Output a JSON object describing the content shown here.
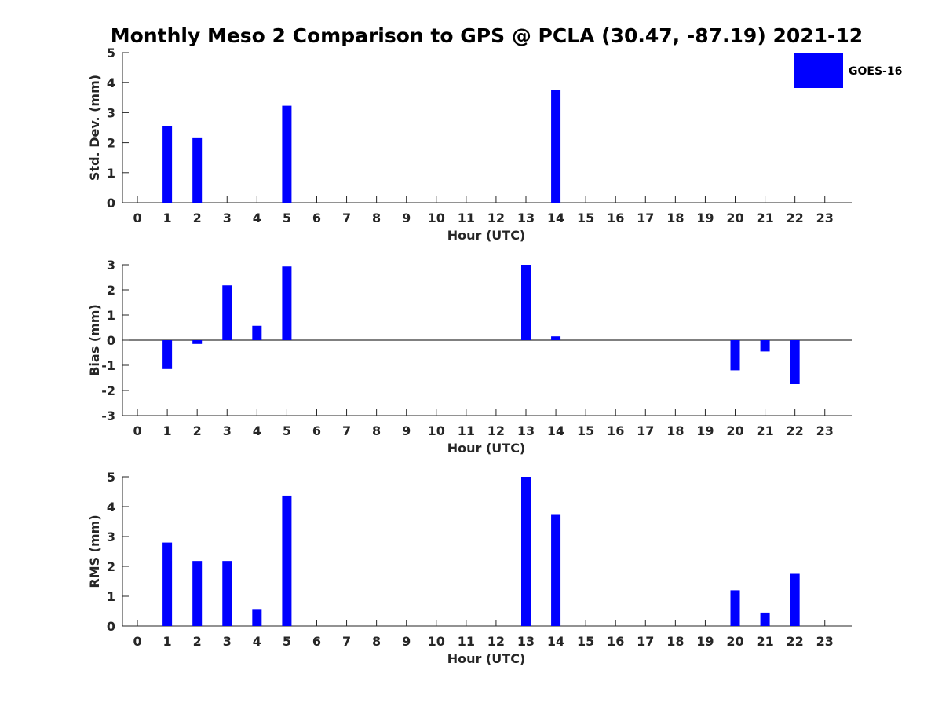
{
  "chart_title": "Monthly Meso 2 Comparison to GPS @ PCLA (30.47, -87.19) 2021-12",
  "colors": {
    "bar": "#0000ff",
    "axis": "#262626",
    "background": "#ffffff"
  },
  "legend": {
    "entries": [
      "GOES-16"
    ],
    "placement": "top-right"
  },
  "chart_data": [
    {
      "type": "bar",
      "ylabel": "Std. Dev. (mm)",
      "xlabel": "Hour (UTC)",
      "ylim": [
        0,
        5
      ],
      "yticks": [
        0,
        1,
        2,
        3,
        4,
        5
      ],
      "xlim": [
        -0.5,
        23.9
      ],
      "categories": [
        0,
        1,
        2,
        3,
        4,
        5,
        6,
        7,
        8,
        9,
        10,
        11,
        12,
        13,
        14,
        15,
        16,
        17,
        18,
        19,
        20,
        21,
        22,
        23
      ],
      "series": [
        {
          "name": "GOES-16",
          "values": [
            0,
            2.55,
            2.15,
            0,
            0,
            3.23,
            0,
            0,
            0,
            0,
            0,
            0,
            0,
            0,
            3.75,
            0,
            0,
            0,
            0,
            0,
            0,
            0,
            0,
            0
          ]
        }
      ],
      "grid": false
    },
    {
      "type": "bar",
      "ylabel": "Bias (mm)",
      "xlabel": "Hour (UTC)",
      "ylim": [
        -3,
        3
      ],
      "yticks": [
        -3,
        -2,
        -1,
        0,
        1,
        2,
        3
      ],
      "xlim": [
        -0.5,
        23.9
      ],
      "categories": [
        0,
        1,
        2,
        3,
        4,
        5,
        6,
        7,
        8,
        9,
        10,
        11,
        12,
        13,
        14,
        15,
        16,
        17,
        18,
        19,
        20,
        21,
        22,
        23
      ],
      "series": [
        {
          "name": "GOES-16",
          "values": [
            0,
            -1.15,
            -0.15,
            2.18,
            0.57,
            2.93,
            0,
            0,
            0,
            0,
            0,
            0,
            0,
            3.0,
            0.15,
            0,
            0,
            0,
            0,
            0,
            -1.2,
            -0.45,
            -1.75,
            0
          ]
        }
      ],
      "zero_line": true,
      "grid": false
    },
    {
      "type": "bar",
      "ylabel": "RMS (mm)",
      "xlabel": "Hour (UTC)",
      "ylim": [
        0,
        5
      ],
      "yticks": [
        0,
        1,
        2,
        3,
        4,
        5
      ],
      "xlim": [
        -0.5,
        23.9
      ],
      "categories": [
        0,
        1,
        2,
        3,
        4,
        5,
        6,
        7,
        8,
        9,
        10,
        11,
        12,
        13,
        14,
        15,
        16,
        17,
        18,
        19,
        20,
        21,
        22,
        23
      ],
      "series": [
        {
          "name": "GOES-16",
          "values": [
            0,
            2.8,
            2.18,
            2.18,
            0.57,
            4.37,
            0,
            0,
            0,
            0,
            0,
            0,
            0,
            5.0,
            3.75,
            0,
            0,
            0,
            0,
            0,
            1.2,
            0.45,
            1.75,
            0
          ]
        }
      ],
      "grid": false
    }
  ]
}
